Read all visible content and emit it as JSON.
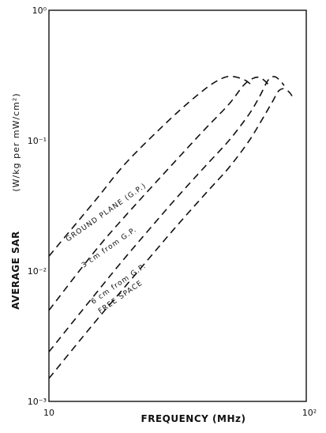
{
  "chart_data": {
    "type": "line",
    "xlabel": "FREQUENCY (MHz)",
    "ylabel": "AVERAGE SAR",
    "yunit": "(W/kg per mW/cm²)",
    "xscale": "log",
    "yscale": "log",
    "xlim": [
      10,
      100
    ],
    "ylim": [
      0.001,
      1
    ],
    "x_ticks": [
      "10",
      "10²"
    ],
    "y_ticks": [
      "10⁻³",
      "10⁻²",
      "10⁻¹",
      "10⁰"
    ],
    "grid": false,
    "series": [
      {
        "name": "GROUND PLANE (G.P.)",
        "points": [
          [
            10,
            0.013
          ],
          [
            15,
            0.034
          ],
          [
            20,
            0.068
          ],
          [
            30,
            0.15
          ],
          [
            40,
            0.245
          ],
          [
            47,
            0.3
          ],
          [
            52,
            0.31
          ],
          [
            58,
            0.29
          ],
          [
            62,
            0.26
          ]
        ]
      },
      {
        "name": "3 cm from G.P.",
        "points": [
          [
            10,
            0.005
          ],
          [
            15,
            0.014
          ],
          [
            20,
            0.027
          ],
          [
            30,
            0.065
          ],
          [
            40,
            0.12
          ],
          [
            50,
            0.19
          ],
          [
            57,
            0.265
          ],
          [
            62,
            0.3
          ],
          [
            66,
            0.305
          ],
          [
            70,
            0.28
          ],
          [
            72,
            0.26
          ]
        ]
      },
      {
        "name": "6 cm from G.P.",
        "points": [
          [
            10,
            0.0024
          ],
          [
            15,
            0.0065
          ],
          [
            20,
            0.013
          ],
          [
            30,
            0.033
          ],
          [
            40,
            0.062
          ],
          [
            50,
            0.1
          ],
          [
            60,
            0.16
          ],
          [
            66,
            0.22
          ],
          [
            71,
            0.29
          ],
          [
            75,
            0.31
          ],
          [
            79,
            0.29
          ],
          [
            82,
            0.265
          ]
        ]
      },
      {
        "name": "FREE SPACE",
        "points": [
          [
            10,
            0.0015
          ],
          [
            15,
            0.004
          ],
          [
            20,
            0.0078
          ],
          [
            30,
            0.02
          ],
          [
            40,
            0.038
          ],
          [
            50,
            0.062
          ],
          [
            60,
            0.1
          ],
          [
            68,
            0.15
          ],
          [
            74,
            0.2
          ],
          [
            78,
            0.24
          ],
          [
            82,
            0.25
          ],
          [
            86,
            0.235
          ],
          [
            88,
            0.22
          ]
        ]
      }
    ]
  }
}
